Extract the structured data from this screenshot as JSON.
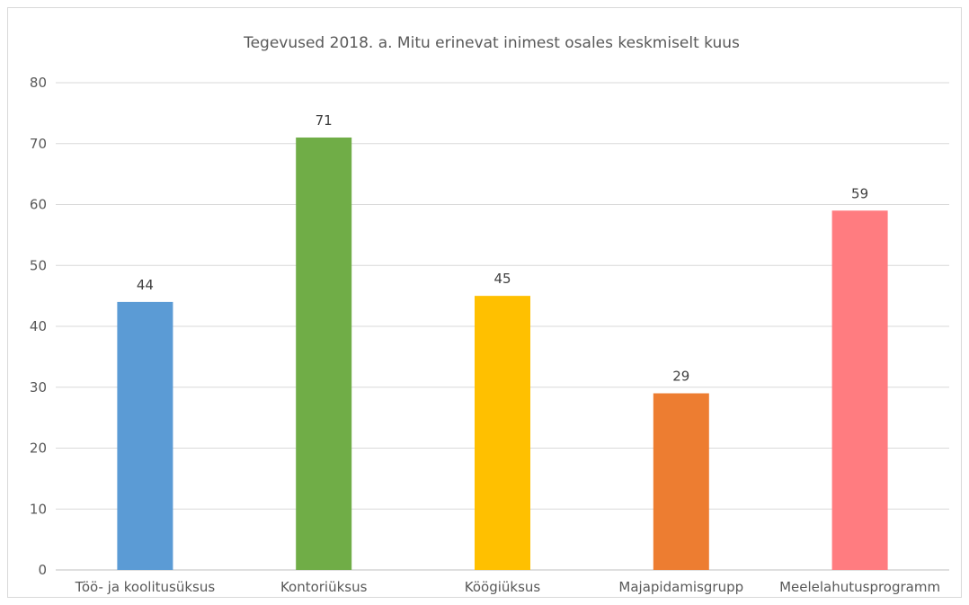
{
  "chart_data": {
    "type": "bar",
    "title": "Tegevused 2018. a. Mitu erinevat inimest osales keskmiselt kuus",
    "xlabel": "",
    "ylabel": "",
    "categories": [
      "Töö- ja koolitusüksus",
      "Kontoriüksus",
      "Köögiüksus",
      "Majapidamisgrupp",
      "Meelelahutusprogramm"
    ],
    "values": [
      44,
      71,
      45,
      29,
      59
    ],
    "colors": [
      "#5B9BD5",
      "#70AD47",
      "#FFC000",
      "#ED7D31",
      "#FF7C80"
    ],
    "ylim": [
      0,
      80
    ],
    "yticks": [
      "0",
      "10",
      "20",
      "30",
      "40",
      "50",
      "60",
      "70",
      "80"
    ],
    "grid": true,
    "legend": "none"
  }
}
